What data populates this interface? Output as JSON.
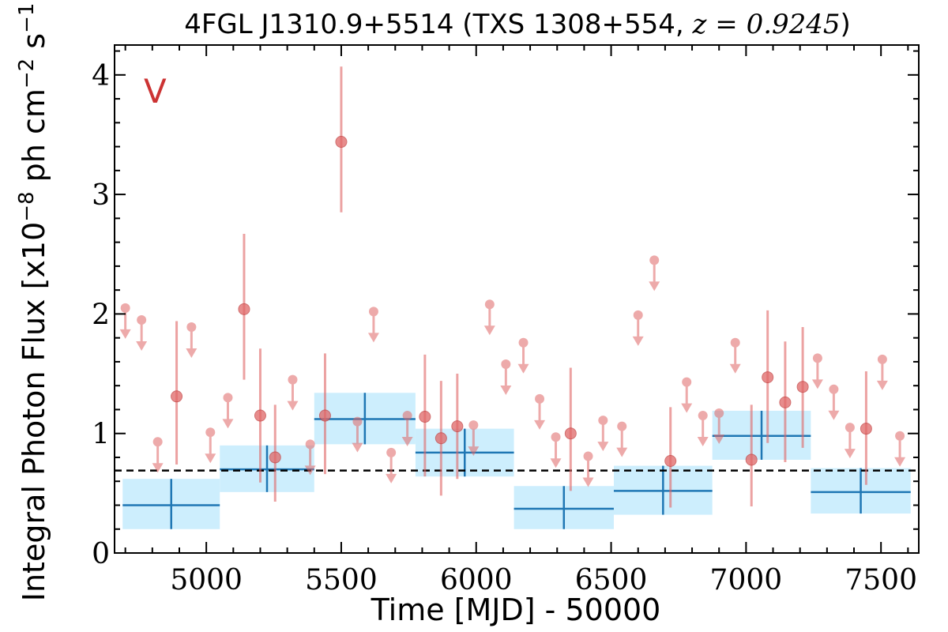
{
  "chart_data": {
    "type": "scatter",
    "title": {
      "prefix": "4FGL J1310.9+5514 (TXS 1308+554, ",
      "math": "z = 0.9245",
      "suffix": ")"
    },
    "xlabel": "Time [MJD] - 50000",
    "ylabel": "Integral Photon Flux [x10",
    "ylabel_exp1": "−8",
    "ylabel_mid": " ph cm",
    "ylabel_exp2": "−2",
    "ylabel_mid2": " s",
    "ylabel_exp3": "−1",
    "ylabel_end": "]",
    "panel_label": "V",
    "xlim": [
      4660,
      7640
    ],
    "ylim": [
      0,
      4.25
    ],
    "xticks": [
      5000,
      5500,
      6000,
      6500,
      7000,
      7500
    ],
    "yticks": [
      0,
      1,
      2,
      3,
      4
    ],
    "grid": false,
    "mean_flux": 0.69,
    "colors": {
      "points": "#e06666",
      "bins_fill": "#cdeefd",
      "bins_line": "#1f77b4",
      "mean_line": "#000000",
      "panel_label": "#cc3333"
    },
    "series": [
      {
        "kind": "detections",
        "points": [
          {
            "x": 4890,
            "y": 1.31,
            "lo": 0.74,
            "hi": 1.94
          },
          {
            "x": 5140,
            "y": 2.04,
            "lo": 1.45,
            "hi": 2.67
          },
          {
            "x": 5200,
            "y": 1.15,
            "lo": 0.59,
            "hi": 1.71
          },
          {
            "x": 5255,
            "y": 0.8,
            "lo": 0.43,
            "hi": 1.24
          },
          {
            "x": 5440,
            "y": 1.15,
            "lo": 0.66,
            "hi": 1.67
          },
          {
            "x": 5500,
            "y": 3.44,
            "lo": 2.85,
            "hi": 4.07
          },
          {
            "x": 5810,
            "y": 1.14,
            "lo": 0.64,
            "hi": 1.66
          },
          {
            "x": 5870,
            "y": 0.96,
            "lo": 0.48,
            "hi": 1.44
          },
          {
            "x": 5930,
            "y": 1.06,
            "lo": 0.62,
            "hi": 1.5
          },
          {
            "x": 6350,
            "y": 1.0,
            "lo": 0.52,
            "hi": 1.55
          },
          {
            "x": 6720,
            "y": 0.77,
            "lo": 0.38,
            "hi": 1.22
          },
          {
            "x": 7020,
            "y": 0.78,
            "lo": 0.39,
            "hi": 1.24
          },
          {
            "x": 7080,
            "y": 1.47,
            "lo": 0.92,
            "hi": 2.03
          },
          {
            "x": 7145,
            "y": 1.26,
            "lo": 0.76,
            "hi": 1.77
          },
          {
            "x": 7210,
            "y": 1.39,
            "lo": 0.88,
            "hi": 1.89
          },
          {
            "x": 7445,
            "y": 1.04,
            "lo": 0.57,
            "hi": 1.52
          }
        ]
      },
      {
        "kind": "upper_limits",
        "points": [
          {
            "x": 4700,
            "y": 2.05
          },
          {
            "x": 4760,
            "y": 1.95
          },
          {
            "x": 4820,
            "y": 0.93
          },
          {
            "x": 4945,
            "y": 1.89
          },
          {
            "x": 5015,
            "y": 1.01
          },
          {
            "x": 5080,
            "y": 1.3
          },
          {
            "x": 5320,
            "y": 1.45
          },
          {
            "x": 5385,
            "y": 0.91
          },
          {
            "x": 5560,
            "y": 1.1
          },
          {
            "x": 5620,
            "y": 2.02
          },
          {
            "x": 5685,
            "y": 0.84
          },
          {
            "x": 5745,
            "y": 1.15
          },
          {
            "x": 5990,
            "y": 1.07
          },
          {
            "x": 6050,
            "y": 2.08
          },
          {
            "x": 6110,
            "y": 1.58
          },
          {
            "x": 6175,
            "y": 1.76
          },
          {
            "x": 6235,
            "y": 1.29
          },
          {
            "x": 6295,
            "y": 0.97
          },
          {
            "x": 6415,
            "y": 0.81
          },
          {
            "x": 6470,
            "y": 1.11
          },
          {
            "x": 6540,
            "y": 1.06
          },
          {
            "x": 6600,
            "y": 1.99
          },
          {
            "x": 6660,
            "y": 2.45
          },
          {
            "x": 6780,
            "y": 1.43
          },
          {
            "x": 6840,
            "y": 1.15
          },
          {
            "x": 6900,
            "y": 1.17
          },
          {
            "x": 6960,
            "y": 1.76
          },
          {
            "x": 7265,
            "y": 1.63
          },
          {
            "x": 7325,
            "y": 1.37
          },
          {
            "x": 7385,
            "y": 1.05
          },
          {
            "x": 7505,
            "y": 1.62
          },
          {
            "x": 7570,
            "y": 0.98
          }
        ]
      },
      {
        "kind": "binned",
        "bins": [
          {
            "x0": 4690,
            "x1": 5050,
            "y": 0.4,
            "ylo": 0.2,
            "yhi": 0.62
          },
          {
            "x0": 5050,
            "x1": 5400,
            "y": 0.7,
            "ylo": 0.51,
            "yhi": 0.9
          },
          {
            "x0": 5400,
            "x1": 5775,
            "y": 1.12,
            "ylo": 0.91,
            "yhi": 1.34
          },
          {
            "x0": 5775,
            "x1": 6140,
            "y": 0.84,
            "ylo": 0.64,
            "yhi": 1.04
          },
          {
            "x0": 6140,
            "x1": 6510,
            "y": 0.37,
            "ylo": 0.2,
            "yhi": 0.56
          },
          {
            "x0": 6510,
            "x1": 6875,
            "y": 0.52,
            "ylo": 0.32,
            "yhi": 0.73
          },
          {
            "x0": 6875,
            "x1": 7240,
            "y": 0.98,
            "ylo": 0.78,
            "yhi": 1.19
          },
          {
            "x0": 7240,
            "x1": 7610,
            "y": 0.51,
            "ylo": 0.33,
            "yhi": 0.71
          }
        ]
      }
    ]
  }
}
